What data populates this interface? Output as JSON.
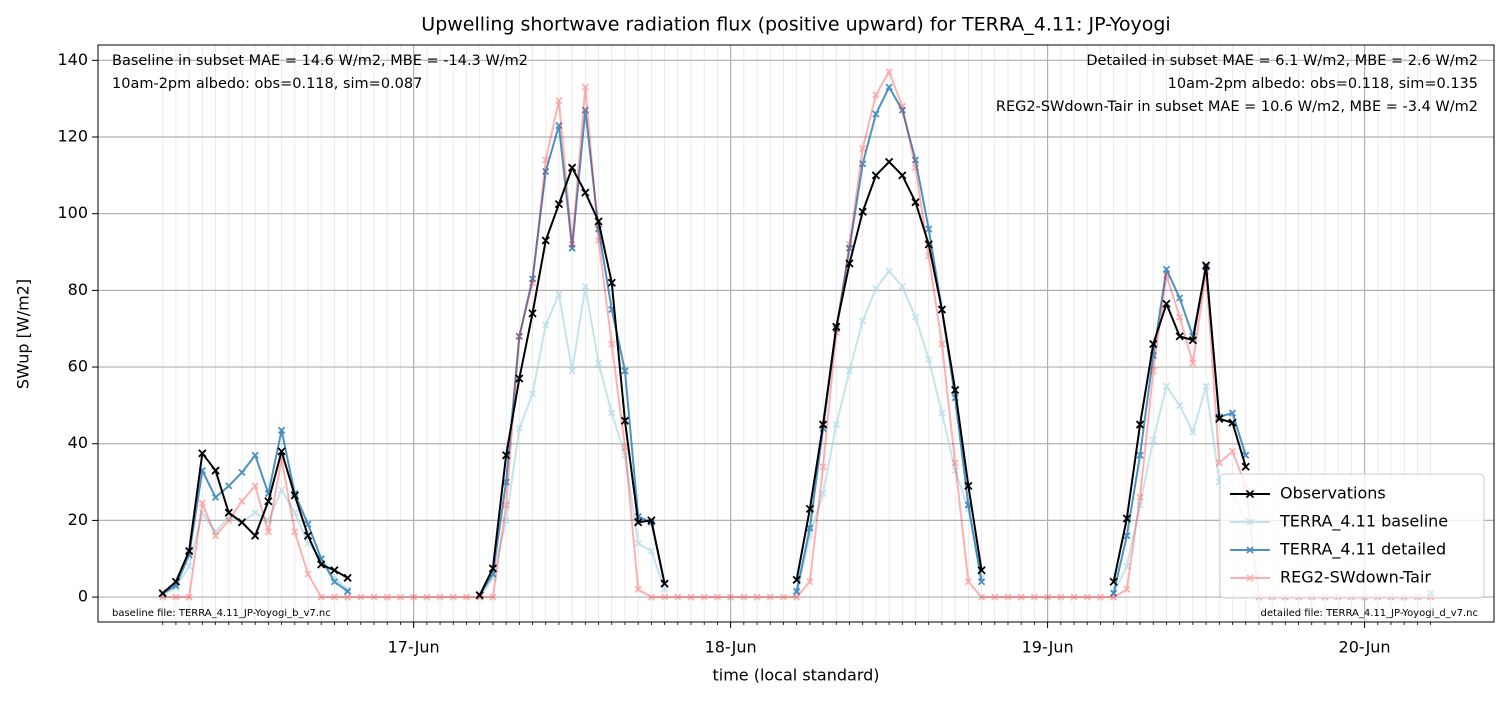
{
  "chart_data": {
    "type": "line",
    "title": "Upwelling shortwave radiation flux (positive upward) for TERRA_4.11: JP-Yoyogi",
    "xlabel": "time (local standard)",
    "ylabel": "SWup [W/m2]",
    "x": [
      5,
      6,
      7,
      8,
      9,
      10,
      11,
      12,
      13,
      14,
      15,
      16,
      17,
      18,
      19,
      20,
      21,
      22,
      23,
      24,
      25,
      26,
      27,
      28,
      29,
      30,
      31,
      32,
      33,
      34,
      35,
      36,
      37,
      38,
      39,
      40,
      41,
      42,
      43,
      44,
      45,
      46,
      47,
      48,
      49,
      50,
      51,
      52,
      53,
      54,
      55,
      56,
      57,
      58,
      59,
      60,
      61,
      62,
      63,
      64,
      65,
      66,
      67,
      68,
      69,
      70,
      71,
      72,
      73,
      74,
      75,
      76,
      77,
      78,
      79,
      80,
      81,
      82,
      83,
      84,
      85,
      86,
      87,
      88,
      89,
      90,
      91,
      92,
      93,
      94,
      95,
      96,
      97,
      98,
      99,
      100,
      101
    ],
    "xlim": [
      0.1,
      105.8
    ],
    "xticks": [
      {
        "value": 24,
        "label": "17-Jun"
      },
      {
        "value": 48,
        "label": "18-Jun"
      },
      {
        "value": 72,
        "label": "19-Jun"
      },
      {
        "value": 96,
        "label": "20-Jun"
      }
    ],
    "ylim": [
      -6.5,
      144
    ],
    "yticks": [
      0,
      20,
      40,
      60,
      80,
      100,
      120,
      140
    ],
    "grid": true,
    "legend": "lower right",
    "series": [
      {
        "name": "Observations",
        "color": "#000000",
        "values": [
          1,
          4,
          12,
          37.5,
          33,
          22,
          19.5,
          16,
          25,
          38,
          26.5,
          16,
          8.5,
          7,
          5,
          null,
          null,
          null,
          null,
          null,
          null,
          null,
          null,
          null,
          0.5,
          7.5,
          37,
          57,
          74,
          93,
          102.5,
          112,
          105.5,
          98,
          82,
          46,
          19.5,
          20,
          3.5,
          null,
          null,
          null,
          null,
          null,
          null,
          null,
          null,
          null,
          4.5,
          23,
          45,
          70.5,
          87,
          100.5,
          110,
          113.5,
          110,
          103,
          92,
          75,
          54,
          29,
          7,
          null,
          null,
          null,
          null,
          null,
          null,
          null,
          null,
          null,
          4,
          20.5,
          45,
          66,
          76.5,
          68,
          67,
          86.5,
          46.5,
          45.5,
          34,
          null,
          null,
          null,
          null,
          null,
          null,
          null,
          null,
          null,
          null,
          null,
          null,
          null,
          null
        ]
      },
      {
        "name": "TERRA_4.11 baseline",
        "color": "#add8e6",
        "values": [
          0.5,
          2.5,
          8,
          22,
          17,
          21,
          19.5,
          22,
          20,
          28,
          22,
          14,
          10,
          5,
          2,
          null,
          null,
          null,
          null,
          null,
          null,
          null,
          null,
          null,
          0,
          5,
          20,
          44,
          53,
          71,
          79,
          59,
          81,
          61,
          48,
          37,
          14,
          12,
          2,
          null,
          null,
          null,
          null,
          null,
          null,
          null,
          null,
          null,
          1,
          16,
          27,
          45,
          59,
          72,
          80.5,
          85,
          81,
          73,
          62,
          48,
          33,
          23,
          5,
          null,
          null,
          null,
          null,
          null,
          null,
          null,
          null,
          null,
          1,
          8,
          24,
          41,
          55,
          50,
          43,
          55,
          30,
          27,
          20,
          null,
          null,
          null,
          null,
          null,
          null,
          null,
          null,
          null,
          null,
          null,
          null,
          null,
          0.5
        ]
      },
      {
        "name": "TERRA_4.11 detailed",
        "color": "#1f77b4",
        "values": [
          1,
          3,
          11,
          33,
          26,
          29,
          32.5,
          37,
          27,
          43.5,
          27,
          19,
          10,
          4,
          1.5,
          null,
          null,
          null,
          null,
          null,
          null,
          null,
          null,
          null,
          0.5,
          6,
          30,
          68,
          83,
          111,
          123,
          91,
          127,
          96,
          75,
          59,
          21,
          19.5,
          3.5,
          null,
          null,
          null,
          null,
          null,
          null,
          null,
          null,
          null,
          1.5,
          18,
          44,
          70,
          91,
          113,
          126,
          133,
          127,
          114,
          96,
          75,
          52,
          24,
          4,
          null,
          null,
          null,
          null,
          null,
          null,
          null,
          null,
          null,
          1,
          16,
          37,
          63,
          85.5,
          78,
          68,
          86,
          47,
          48,
          37,
          null,
          null,
          null,
          null,
          null,
          null,
          null,
          null,
          null,
          null,
          null,
          null,
          null,
          1
        ]
      },
      {
        "name": "REG2-SWdown-Tair",
        "color": "#ff0000",
        "values": [
          0,
          0,
          0,
          24.5,
          16,
          20,
          25,
          29,
          17,
          36,
          17,
          6,
          0,
          0,
          0,
          0,
          0,
          0,
          0,
          0,
          0,
          0,
          0,
          0,
          0,
          0,
          24,
          68,
          82,
          114,
          129.5,
          92,
          133,
          93,
          66,
          39,
          2,
          0,
          0,
          0,
          0,
          0,
          0,
          0,
          0,
          0,
          0,
          0,
          0,
          4,
          34,
          69,
          92,
          117,
          131,
          137,
          128,
          112,
          89,
          66,
          35,
          4,
          0,
          0,
          0,
          0,
          0,
          0,
          0,
          0,
          0,
          0,
          0,
          2,
          26,
          59,
          84,
          73,
          61,
          85,
          35,
          38,
          29,
          0,
          0,
          0,
          0,
          0,
          0,
          0,
          0,
          0,
          0,
          0,
          0,
          0,
          0
        ]
      }
    ],
    "annotations": [
      {
        "text": "Baseline in subset MAE = 14.6 W/m2, MBE = -14.3 W/m2",
        "color": "#add8e6"
      },
      {
        "text": "10am-2pm albedo: obs=0.118, sim=0.087",
        "color": "#000000"
      },
      {
        "text": "Detailed in subset MAE = 6.1 W/m2, MBE = 2.6 W/m2",
        "color": "#1f77b4"
      },
      {
        "text": "10am-2pm albedo: obs=0.118, sim=0.135",
        "color": "#000000"
      },
      {
        "text": "REG2-SWdown-Tair in subset MAE = 10.6 W/m2, MBE = -3.4 W/m2",
        "color": "#ff0000"
      },
      {
        "text": "baseline file: TERRA_4.11_JP-Yoyogi_b_v7.nc",
        "color": "#000000"
      },
      {
        "text": "detailed file: TERRA_4.11_JP-Yoyogi_d_v7.nc",
        "color": "#000000"
      }
    ]
  }
}
